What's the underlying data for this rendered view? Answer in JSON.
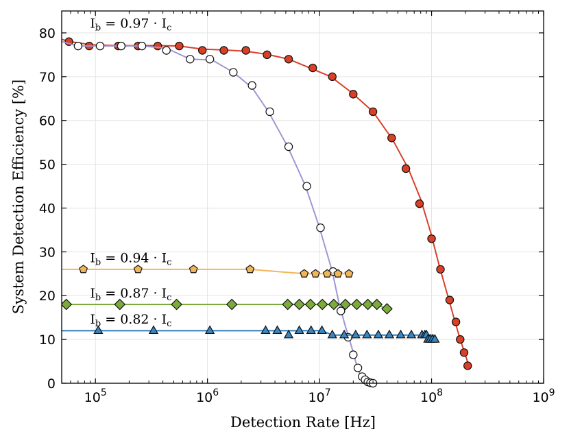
{
  "chart_data": {
    "type": "scatter",
    "title": "",
    "xlabel": "Detection Rate [Hz]",
    "ylabel": "System Detection Efficiency [%]",
    "xscale": "log",
    "xlim": [
      50000,
      1000000000
    ],
    "ylim": [
      0,
      85
    ],
    "xticks": [
      {
        "value": 100000,
        "base": "10",
        "exp": "5"
      },
      {
        "value": 1000000,
        "base": "10",
        "exp": "6"
      },
      {
        "value": 10000000,
        "base": "10",
        "exp": "7"
      },
      {
        "value": 100000000,
        "base": "10",
        "exp": "8"
      },
      {
        "value": 1000000000,
        "base": "10",
        "exp": "9"
      }
    ],
    "yticks": [
      "0",
      "10",
      "20",
      "30",
      "40",
      "50",
      "60",
      "70",
      "80"
    ],
    "grid": true,
    "annotations": [
      {
        "text": "I_b = 0.97 · I_c",
        "main": "I",
        "sub": "b",
        "eq": " = 0.97 · ",
        "main2": "I",
        "sub2": "c",
        "x": 80000,
        "y": 81.2
      },
      {
        "text": "I_b = 0.94 · I_c",
        "main": "I",
        "sub": "b",
        "eq": " = 0.94 · ",
        "main2": "I",
        "sub2": "c",
        "x": 80000,
        "y": 27.6
      },
      {
        "text": "I_b = 0.87 · I_c",
        "main": "I",
        "sub": "b",
        "eq": " = 0.87 · ",
        "main2": "I",
        "sub2": "c",
        "x": 80000,
        "y": 19.6
      },
      {
        "text": "I_b = 0.82 · I_c",
        "main": "I",
        "sub": "b",
        "eq": " = 0.82 · ",
        "main2": "I",
        "sub2": "c",
        "x": 80000,
        "y": 13.6
      }
    ],
    "series": [
      {
        "key": "red",
        "marker": "circle",
        "color": "#d94027",
        "fill": "#d94027",
        "line_x": [
          50000,
          60000,
          90000,
          160000,
          240000,
          380000,
          560000,
          900000,
          1400000,
          2200000,
          3400000,
          5300000,
          8200000,
          12600000,
          19500000,
          30000000,
          45000000,
          62000000,
          80000000,
          98000000,
          118000000,
          140000000,
          160000000,
          180000000,
          200000000,
          215000000
        ],
        "line_y": [
          78.5,
          78.0,
          77.3,
          77.1,
          77.1,
          77.1,
          77.0,
          76.3,
          76.1,
          75.8,
          75.1,
          74.0,
          72.0,
          70.0,
          66.3,
          62.0,
          55.6,
          49.0,
          42.0,
          34.5,
          26.5,
          19.8,
          14.5,
          10.0,
          6.5,
          4.0
        ],
        "x": [
          58000,
          88000,
          160000,
          240000,
          360000,
          560000,
          900000,
          1400000,
          2200000,
          3400000,
          5300000,
          8700000,
          13000000,
          20000000,
          30000000,
          44000000,
          59000000,
          78000000,
          100000000,
          120000000,
          145000000,
          165000000,
          180000000,
          195000000,
          210000000
        ],
        "y": [
          78,
          77,
          77,
          77,
          77,
          77,
          76,
          76,
          76,
          75,
          74,
          72,
          70,
          66,
          62,
          56,
          49,
          41,
          33,
          26,
          19,
          14,
          10,
          7,
          4
        ]
      },
      {
        "key": "purple",
        "marker": "open-circle",
        "color": "#9e97d4",
        "fill": "#ffffff",
        "line_x": [
          50000,
          70000,
          110000,
          170000,
          260000,
          430000,
          700000,
          1100000,
          1700000,
          2500000,
          3500000,
          5200000,
          7500000,
          10000000,
          13000000,
          15000000,
          17000000,
          18500000,
          20000000,
          21500000,
          23000000,
          25000000,
          27000000,
          29000000
        ],
        "line_y": [
          78.0,
          77.0,
          77.0,
          77.0,
          77.0,
          76.5,
          74.0,
          73.8,
          71.0,
          67.5,
          62.0,
          54.0,
          45.0,
          35.5,
          25.5,
          18.0,
          13.0,
          10.0,
          7.0,
          4.0,
          2.0,
          1.0,
          0.4,
          0.2
        ],
        "x": [
          70000,
          110000,
          170000,
          260000,
          430000,
          700000,
          1050000,
          1700000,
          2500000,
          3600000,
          5300000,
          7700000,
          10200000,
          13200000,
          15500000,
          18000000,
          20000000,
          22000000,
          24000000,
          25500000,
          27000000,
          28500000,
          30000000
        ],
        "y": [
          77,
          77,
          77,
          77,
          76,
          74,
          74,
          71,
          68,
          62,
          54,
          45,
          35.5,
          25.5,
          16.5,
          10.5,
          6.5,
          3.5,
          1.5,
          0.8,
          0.3,
          0.1,
          0
        ]
      },
      {
        "key": "orange",
        "marker": "pentagon",
        "color": "#f2b65a",
        "fill": "#f2b65a",
        "line_x": [
          50000,
          2400000,
          7300000,
          18000000
        ],
        "line_y": [
          26,
          26,
          25,
          25
        ],
        "x": [
          78000,
          240000,
          750000,
          2400000,
          7300000,
          9200000,
          11700000,
          14600000,
          18300000
        ],
        "y": [
          26,
          26,
          26,
          26,
          25,
          25,
          25,
          25,
          25
        ]
      },
      {
        "key": "green",
        "marker": "diamond",
        "color": "#7aab3c",
        "fill": "#7aab3c",
        "line_x": [
          50000,
          32000000,
          40000000
        ],
        "line_y": [
          18,
          18,
          17
        ],
        "x": [
          55000,
          165000,
          530000,
          1650000,
          5200000,
          6600000,
          8300000,
          10600000,
          13400000,
          17000000,
          21500000,
          27000000,
          32500000,
          40000000
        ],
        "y": [
          18,
          18,
          18,
          18,
          18,
          18,
          18,
          18,
          18,
          18,
          18,
          18,
          18,
          17
        ]
      },
      {
        "key": "blue",
        "marker": "triangle",
        "color": "#2f7cb8",
        "fill": "#3a86c2",
        "line_x": [
          50000,
          2400000,
          10500000,
          13000000,
          105000000
        ],
        "line_y": [
          12,
          12,
          12,
          11,
          11
        ],
        "x": [
          106000,
          330000,
          1050000,
          3300000,
          4200000,
          5300000,
          6600000,
          8400000,
          10500000,
          13000000,
          16600000,
          21000000,
          26500000,
          33500000,
          42000000,
          53000000,
          66000000,
          82000000,
          87000000,
          90000000,
          93000000,
          97000000,
          102000000,
          107000000
        ],
        "y": [
          12,
          12,
          12,
          12,
          12,
          11,
          12,
          12,
          12,
          11,
          11,
          11,
          11,
          11,
          11,
          11,
          11,
          11,
          11,
          11,
          10,
          10,
          10,
          10
        ]
      }
    ]
  }
}
